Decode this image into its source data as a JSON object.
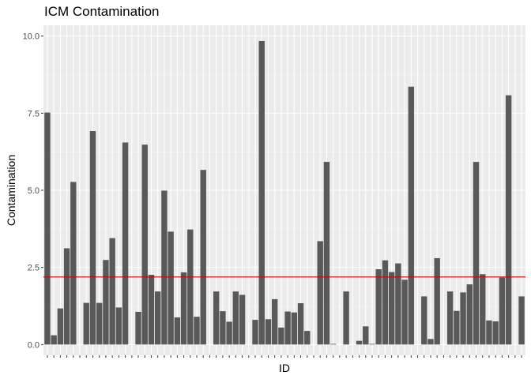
{
  "chart_data": {
    "type": "bar",
    "title": "ICM Contamination",
    "xlabel": "ID",
    "ylabel": "Contamination",
    "ylim": [
      -0.35,
      10.35
    ],
    "yticks": [
      0,
      2.5,
      5,
      7.5,
      10
    ],
    "ytick_labels": [
      "0.0",
      "2.5",
      "5.0",
      "7.5",
      "10.0"
    ],
    "x_tick_labels_visible": false,
    "values": [
      7.52,
      0.3,
      1.17,
      3.12,
      5.27,
      0,
      1.35,
      6.92,
      1.35,
      2.74,
      3.45,
      1.2,
      6.55,
      0,
      1.06,
      6.48,
      2.26,
      1.72,
      4.99,
      3.66,
      0.88,
      2.34,
      3.73,
      0.9,
      5.66,
      0,
      1.72,
      1.08,
      0.74,
      1.72,
      1.61,
      0,
      0.8,
      9.84,
      0.82,
      1.47,
      0.55,
      1.07,
      1.04,
      1.34,
      0.44,
      0,
      3.35,
      5.92,
      0.02,
      0,
      1.72,
      0,
      0.12,
      0.59,
      0.02,
      2.44,
      2.73,
      2.35,
      2.63,
      2.1,
      8.36,
      0,
      1.56,
      0.18,
      2.8,
      0,
      1.72,
      1.09,
      1.69,
      1.95,
      5.92,
      2.28,
      0.78,
      0.75,
      2.17,
      8.08,
      0,
      1.56
    ],
    "reference_line": {
      "y": 2.19,
      "color": "#cc0000"
    },
    "bar_color": "#595959",
    "panel_background": "#ebebeb",
    "grid": true
  }
}
